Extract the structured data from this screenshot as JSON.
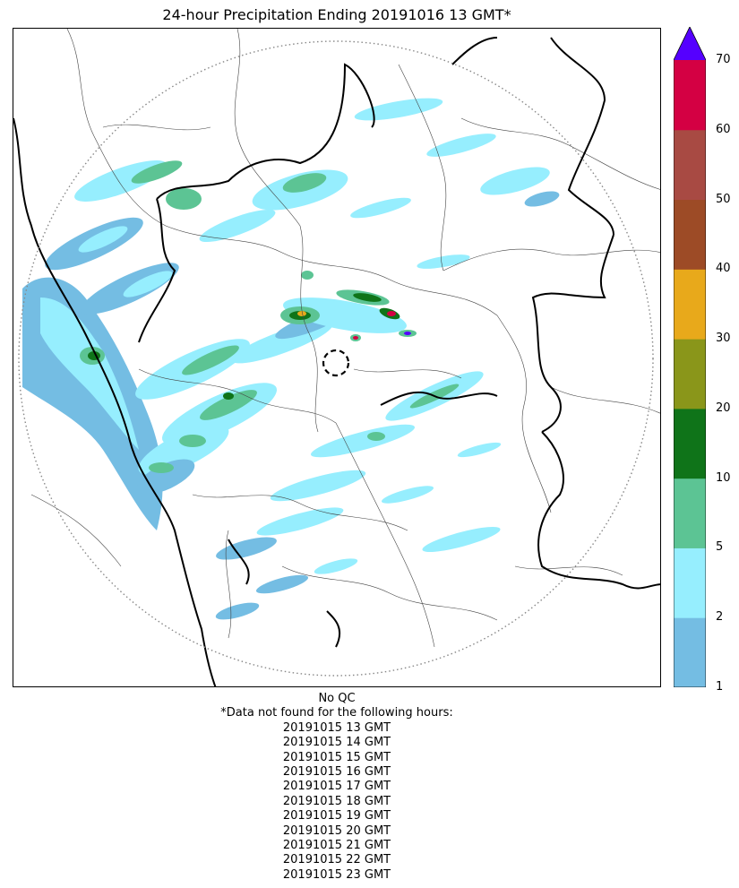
{
  "title": "24-hour Precipitation Ending 20191016 13 GMT*",
  "colorbar": {
    "levels": [
      1,
      2,
      5,
      10,
      20,
      30,
      40,
      50,
      60,
      70
    ],
    "tick_labels": [
      "1",
      "2",
      "5",
      "10",
      "20",
      "30",
      "40",
      "50",
      "60",
      "70"
    ],
    "colors": [
      "#74bde3",
      "#96eefe",
      "#5cc494",
      "#0f7419",
      "#8a961a",
      "#e8a91b",
      "#9d4b26",
      "#a84a43",
      "#d40043"
    ],
    "extend_color": "#5500ff"
  },
  "footer": {
    "qc_note": "No QC",
    "missing_header": "*Data not found for the following hours:",
    "missing_hours": [
      "20191015 13 GMT",
      "20191015 14 GMT",
      "20191015 15 GMT",
      "20191015 16 GMT",
      "20191015 17 GMT",
      "20191015 18 GMT",
      "20191015 19 GMT",
      "20191015 20 GMT",
      "20191015 21 GMT",
      "20191015 22 GMT",
      "20191015 23 GMT"
    ]
  }
}
